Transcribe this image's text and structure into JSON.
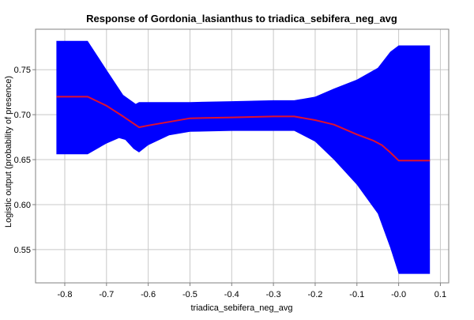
{
  "chart_data": {
    "type": "area",
    "title": "Response of Gordonia_lasianthus to triadica_sebifera_neg_avg",
    "xlabel": "triadica_sebifera_neg_avg",
    "ylabel": "Logistic output (probability of presence)",
    "xlim": [
      -0.87,
      0.12
    ],
    "ylim": [
      0.513,
      0.795
    ],
    "xticks": [
      -0.8,
      -0.7,
      -0.6,
      -0.5,
      -0.4,
      -0.3,
      -0.2,
      -0.1,
      0.0,
      0.1
    ],
    "xtick_labels": [
      "-0.8",
      "-0.7",
      "-0.6",
      "-0.5",
      "-0.4",
      "-0.3",
      "-0.2",
      "-0.1",
      "-0.0",
      "0.1"
    ],
    "yticks": [
      0.55,
      0.6,
      0.65,
      0.7,
      0.75
    ],
    "ytick_labels": [
      "0.55",
      "0.60",
      "0.65",
      "0.70",
      "0.75"
    ],
    "grid": true,
    "band_color": "#0000ff",
    "line_color": "#e0102f",
    "series": [
      {
        "role": "mean",
        "x": [
          -0.82,
          -0.745,
          -0.7,
          -0.66,
          -0.622,
          -0.6,
          -0.5,
          -0.4,
          -0.3,
          -0.25,
          -0.2,
          -0.155,
          -0.1,
          -0.06,
          -0.04,
          -0.02,
          0.0,
          0.075
        ],
        "y": [
          0.72,
          0.72,
          0.71,
          0.698,
          0.686,
          0.688,
          0.696,
          0.697,
          0.698,
          0.698,
          0.694,
          0.689,
          0.678,
          0.671,
          0.666,
          0.658,
          0.649,
          0.649
        ]
      },
      {
        "role": "upper",
        "x": [
          -0.82,
          -0.745,
          -0.7,
          -0.66,
          -0.63,
          -0.622,
          -0.6,
          -0.5,
          -0.4,
          -0.3,
          -0.25,
          -0.2,
          -0.155,
          -0.1,
          -0.05,
          -0.02,
          0.0,
          0.075
        ],
        "y": [
          0.782,
          0.782,
          0.75,
          0.722,
          0.712,
          0.714,
          0.714,
          0.714,
          0.715,
          0.716,
          0.716,
          0.72,
          0.729,
          0.739,
          0.752,
          0.77,
          0.777,
          0.777
        ]
      },
      {
        "role": "lower",
        "x": [
          -0.82,
          -0.745,
          -0.7,
          -0.67,
          -0.655,
          -0.635,
          -0.622,
          -0.6,
          -0.55,
          -0.5,
          -0.4,
          -0.3,
          -0.25,
          -0.2,
          -0.155,
          -0.1,
          -0.05,
          -0.02,
          0.0,
          0.075
        ],
        "y": [
          0.656,
          0.656,
          0.668,
          0.674,
          0.672,
          0.662,
          0.658,
          0.666,
          0.677,
          0.681,
          0.682,
          0.682,
          0.682,
          0.67,
          0.65,
          0.622,
          0.59,
          0.552,
          0.523,
          0.523
        ]
      }
    ]
  }
}
